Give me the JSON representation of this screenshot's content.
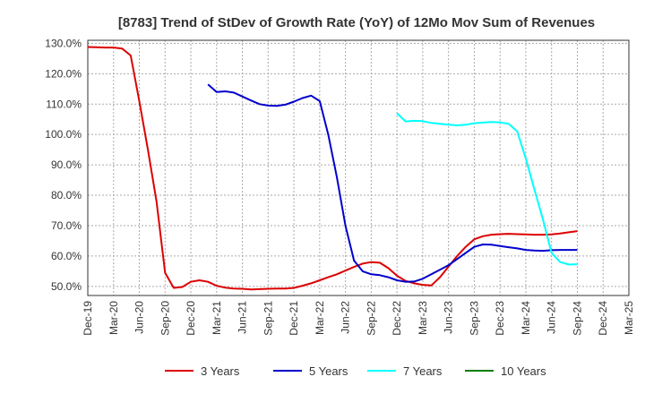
{
  "chart_data": {
    "type": "line",
    "title": "[8783]  Trend of StDev of Growth Rate (YoY) of 12Mo Mov Sum of Revenues",
    "xlabel": "",
    "ylabel": "",
    "ylim": [
      47.0,
      131.0
    ],
    "yticks": [
      50,
      60,
      70,
      80,
      90,
      100,
      110,
      120,
      130
    ],
    "ytick_labels": [
      "50.0%",
      "60.0%",
      "70.0%",
      "80.0%",
      "90.0%",
      "100.0%",
      "110.0%",
      "120.0%",
      "130.0%"
    ],
    "x_start": "Dec-19",
    "xtick_labels": [
      "Dec-19",
      "Mar-20",
      "Jun-20",
      "Sep-20",
      "Dec-20",
      "Mar-21",
      "Jun-21",
      "Sep-21",
      "Dec-21",
      "Mar-22",
      "Jun-22",
      "Sep-22",
      "Dec-22",
      "Mar-23",
      "Jun-23",
      "Sep-23",
      "Dec-23",
      "Mar-24",
      "Jun-24",
      "Sep-24",
      "Dec-24",
      "Mar-25"
    ],
    "xlim": [
      0,
      63
    ],
    "grid": true,
    "legend_position": "bottom",
    "series": [
      {
        "name": "3 Years",
        "color": "#dd0000",
        "points": [
          [
            0,
            128.8
          ],
          [
            1,
            128.7
          ],
          [
            2,
            128.6
          ],
          [
            3,
            128.6
          ],
          [
            4,
            128.3
          ],
          [
            5,
            126.0
          ],
          [
            6,
            111.0
          ],
          [
            7,
            95.0
          ],
          [
            8,
            78.0
          ],
          [
            9,
            54.5
          ],
          [
            10,
            49.5
          ],
          [
            11,
            49.8
          ],
          [
            12,
            51.5
          ],
          [
            13,
            52.0
          ],
          [
            14,
            51.5
          ],
          [
            15,
            50.2
          ],
          [
            16,
            49.6
          ],
          [
            17,
            49.3
          ],
          [
            18,
            49.2
          ],
          [
            19,
            49.0
          ],
          [
            20,
            49.1
          ],
          [
            21,
            49.2
          ],
          [
            22,
            49.3
          ],
          [
            23,
            49.3
          ],
          [
            24,
            49.5
          ],
          [
            25,
            50.2
          ],
          [
            26,
            51.0
          ],
          [
            27,
            52.0
          ],
          [
            28,
            53.0
          ],
          [
            29,
            54.0
          ],
          [
            30,
            55.2
          ],
          [
            31,
            56.4
          ],
          [
            32,
            57.5
          ],
          [
            33,
            58.0
          ],
          [
            34,
            57.8
          ],
          [
            35,
            56.0
          ],
          [
            36,
            53.5
          ],
          [
            37,
            51.8
          ],
          [
            38,
            51.0
          ],
          [
            39,
            50.5
          ],
          [
            40,
            50.3
          ],
          [
            41,
            53.0
          ],
          [
            42,
            56.5
          ],
          [
            43,
            60.0
          ],
          [
            44,
            63.0
          ],
          [
            45,
            65.5
          ],
          [
            46,
            66.5
          ],
          [
            47,
            67.0
          ],
          [
            48,
            67.2
          ],
          [
            49,
            67.3
          ],
          [
            50,
            67.2
          ],
          [
            51,
            67.1
          ],
          [
            52,
            67.0
          ],
          [
            53,
            67.0
          ],
          [
            54,
            67.1
          ],
          [
            55,
            67.4
          ],
          [
            56,
            67.8
          ],
          [
            57,
            68.2
          ]
        ]
      },
      {
        "name": "5 Years",
        "color": "#0000cc",
        "points": [
          [
            14,
            116.5
          ],
          [
            15,
            114.0
          ],
          [
            16,
            114.2
          ],
          [
            17,
            113.8
          ],
          [
            18,
            112.5
          ],
          [
            19,
            111.2
          ],
          [
            20,
            110.0
          ],
          [
            21,
            109.5
          ],
          [
            22,
            109.4
          ],
          [
            23,
            109.8
          ],
          [
            24,
            110.8
          ],
          [
            25,
            112.0
          ],
          [
            26,
            112.8
          ],
          [
            27,
            111.0
          ],
          [
            28,
            100.0
          ],
          [
            29,
            86.0
          ],
          [
            30,
            70.0
          ],
          [
            31,
            58.5
          ],
          [
            32,
            55.0
          ],
          [
            33,
            54.0
          ],
          [
            34,
            53.7
          ],
          [
            35,
            53.0
          ],
          [
            36,
            52.0
          ],
          [
            37,
            51.5
          ],
          [
            38,
            51.6
          ],
          [
            39,
            52.5
          ],
          [
            40,
            54.0
          ],
          [
            41,
            55.5
          ],
          [
            42,
            57.0
          ],
          [
            43,
            59.0
          ],
          [
            44,
            61.0
          ],
          [
            45,
            63.0
          ],
          [
            46,
            63.8
          ],
          [
            47,
            63.7
          ],
          [
            48,
            63.3
          ],
          [
            49,
            62.9
          ],
          [
            50,
            62.5
          ],
          [
            51,
            62.0
          ],
          [
            52,
            61.8
          ],
          [
            53,
            61.7
          ],
          [
            54,
            61.9
          ],
          [
            55,
            62.0
          ],
          [
            56,
            62.0
          ],
          [
            57,
            62.0
          ]
        ]
      },
      {
        "name": "7 Years",
        "color": "#00ffff",
        "points": [
          [
            36,
            107.0
          ],
          [
            37,
            104.3
          ],
          [
            38,
            104.5
          ],
          [
            39,
            104.4
          ],
          [
            40,
            103.8
          ],
          [
            41,
            103.5
          ],
          [
            42,
            103.2
          ],
          [
            43,
            103.0
          ],
          [
            44,
            103.2
          ],
          [
            45,
            103.7
          ],
          [
            46,
            103.9
          ],
          [
            47,
            104.1
          ],
          [
            48,
            104.0
          ],
          [
            49,
            103.5
          ],
          [
            50,
            101.0
          ],
          [
            51,
            92.0
          ],
          [
            52,
            82.0
          ],
          [
            53,
            72.0
          ],
          [
            54,
            61.0
          ],
          [
            55,
            58.0
          ],
          [
            56,
            57.2
          ],
          [
            57,
            57.3
          ]
        ]
      },
      {
        "name": "10 Years",
        "color": "#008000",
        "points": []
      }
    ]
  }
}
